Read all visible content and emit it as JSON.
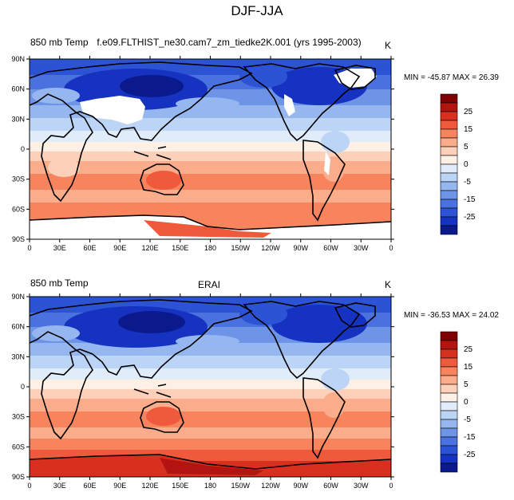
{
  "figure_title": "DJF-JJA",
  "colorbar": {
    "labels": [
      "25",
      "15",
      "5",
      "0",
      "-5",
      "-15",
      "-25"
    ],
    "colors": [
      "#7f0000",
      "#b3140f",
      "#d7301f",
      "#ef5a3c",
      "#f7845c",
      "#fbac8a",
      "#fdd0b9",
      "#fff0e6",
      "#e1ecfa",
      "#bcd4f5",
      "#95b6ee",
      "#6d94e6",
      "#4a72df",
      "#2c53d4",
      "#1533c0",
      "#0a1a8c"
    ]
  },
  "lat_labels": [
    "90N",
    "60N",
    "30N",
    "0",
    "30S",
    "60S",
    "90S"
  ],
  "lon_labels": [
    "0",
    "30E",
    "60E",
    "90E",
    "120E",
    "150E",
    "180",
    "150W",
    "120W",
    "90W",
    "60W",
    "30W",
    "0"
  ],
  "panels": [
    {
      "left_label": "850 mb Temp",
      "center_label": "f.e09.FLTHIST_ne30.cam7_zm_tiedke2K.001 (yrs 1995-2003)",
      "right_label": "K",
      "min_max": "MIN = -45.87 MAX =  26.39"
    },
    {
      "left_label": "850 mb Temp",
      "center_label": "ERAI",
      "right_label": "K",
      "min_max": "MIN = -36.53 MAX =  24.02"
    }
  ]
}
